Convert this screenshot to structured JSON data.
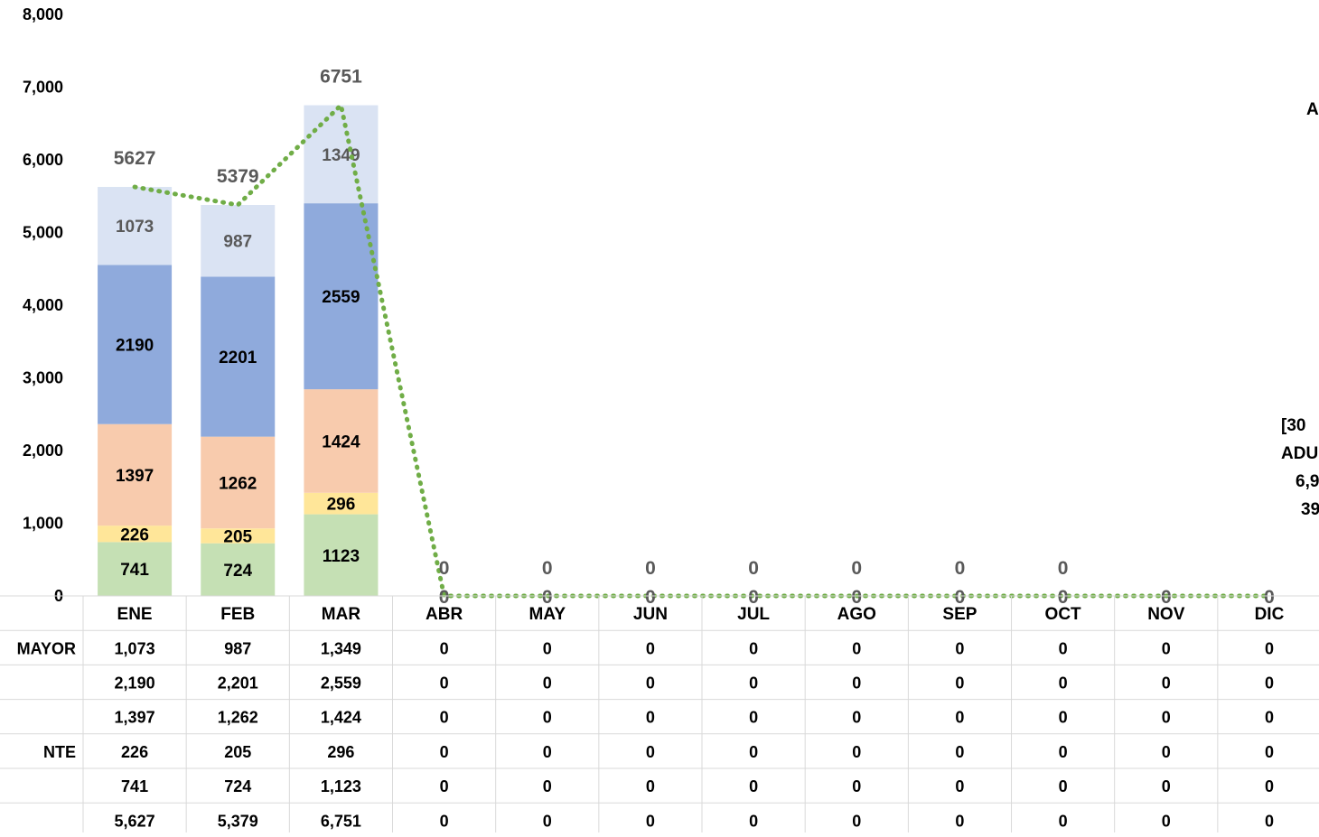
{
  "chart_data": {
    "type": "bar",
    "stacked": true,
    "categories": [
      "ENE",
      "FEB",
      "MAR",
      "ABR",
      "MAY",
      "JUN",
      "JUL",
      "AGO",
      "SEP",
      "OCT",
      "NOV",
      "DIC"
    ],
    "ylim": [
      0,
      8000
    ],
    "yticks": [
      "0",
      "1,000",
      "2,000",
      "3,000",
      "4,000",
      "5,000",
      "6,000",
      "7,000",
      "8,000"
    ],
    "grid": false,
    "series": [
      {
        "name": "",
        "color": "#c5e0b4",
        "values": [
          741,
          724,
          1123,
          0,
          0,
          0,
          0,
          0,
          0,
          0,
          0,
          0
        ]
      },
      {
        "name": "NTE",
        "color": "#ffe699",
        "values": [
          226,
          205,
          296,
          0,
          0,
          0,
          0,
          0,
          0,
          0,
          0,
          0
        ]
      },
      {
        "name": "",
        "color": "#f8cbad",
        "values": [
          1397,
          1262,
          1424,
          0,
          0,
          0,
          0,
          0,
          0,
          0,
          0,
          0
        ]
      },
      {
        "name": "",
        "color": "#8faadc",
        "values": [
          2190,
          2201,
          2559,
          0,
          0,
          0,
          0,
          0,
          0,
          0,
          0,
          0
        ]
      },
      {
        "name": "MAYOR",
        "color": "#dae3f3",
        "values": [
          1073,
          987,
          1349,
          0,
          0,
          0,
          0,
          0,
          0,
          0,
          0,
          0
        ]
      }
    ],
    "total": {
      "color": "#70ad47",
      "values": [
        5627,
        5379,
        6751,
        0,
        0,
        0,
        0,
        0,
        0,
        0,
        0,
        0
      ]
    },
    "table_rows": [
      {
        "label": "MAYOR",
        "values": [
          "1,073",
          "987",
          "1,349",
          "0",
          "0",
          "0",
          "0",
          "0",
          "0",
          "0",
          "0",
          "0"
        ]
      },
      {
        "label": "",
        "values": [
          "2,190",
          "2,201",
          "2,559",
          "0",
          "0",
          "0",
          "0",
          "0",
          "0",
          "0",
          "0",
          "0"
        ]
      },
      {
        "label": "",
        "values": [
          "1,397",
          "1,262",
          "1,424",
          "0",
          "0",
          "0",
          "0",
          "0",
          "0",
          "0",
          "0",
          "0"
        ]
      },
      {
        "label": "NTE",
        "values": [
          "226",
          "205",
          "296",
          "0",
          "0",
          "0",
          "0",
          "0",
          "0",
          "0",
          "0",
          "0"
        ]
      },
      {
        "label": "",
        "values": [
          "741",
          "724",
          "1,123",
          "0",
          "0",
          "0",
          "0",
          "0",
          "0",
          "0",
          "0",
          "0"
        ]
      },
      {
        "label": "",
        "values": [
          "5,627",
          "5,379",
          "6,751",
          "0",
          "0",
          "0",
          "0",
          "0",
          "0",
          "0",
          "0",
          "0"
        ]
      }
    ],
    "side_annotation_top": "A",
    "side_annotation_lines": [
      "[30",
      "ADU",
      "6,9",
      "39"
    ]
  }
}
